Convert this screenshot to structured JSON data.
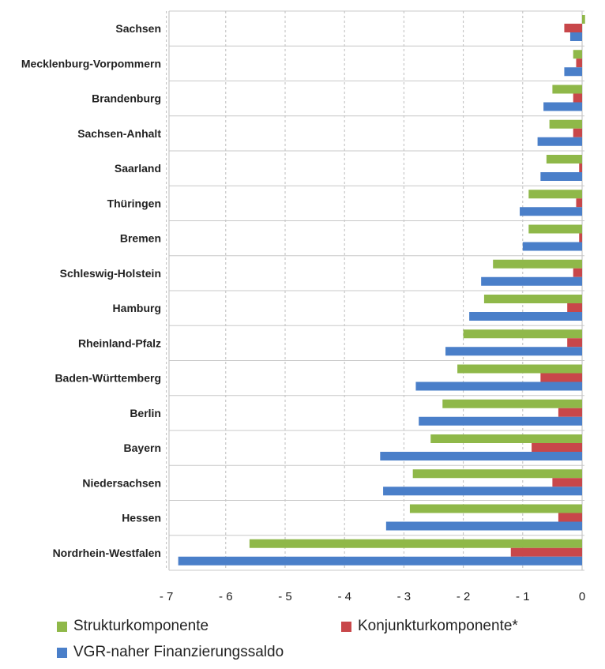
{
  "chart_data": {
    "type": "bar",
    "orientation": "horizontal",
    "categories": [
      "Sachsen",
      "Mecklenburg-Vorpommern",
      "Brandenburg",
      "Sachsen-Anhalt",
      "Saarland",
      "Thüringen",
      "Bremen",
      "Schleswig-Holstein",
      "Hamburg",
      "Rheinland-Pfalz",
      "Baden-Württemberg",
      "Berlin",
      "Bayern",
      "Niedersachsen",
      "Hessen",
      "Nordrhein-Westfalen"
    ],
    "series": [
      {
        "name": "Strukturkomponente",
        "color": "#8fb849",
        "values": [
          0.05,
          -0.15,
          -0.5,
          -0.55,
          -0.6,
          -0.9,
          -0.9,
          -1.5,
          -1.65,
          -2.0,
          -2.1,
          -2.35,
          -2.55,
          -2.85,
          -2.9,
          -5.6
        ]
      },
      {
        "name": "Konjunkturkomponente*",
        "color": "#c8474a",
        "values": [
          -0.3,
          -0.1,
          -0.15,
          -0.15,
          -0.05,
          -0.1,
          -0.05,
          -0.15,
          -0.25,
          -0.25,
          -0.7,
          -0.4,
          -0.85,
          -0.5,
          -0.4,
          -1.2
        ]
      },
      {
        "name": "VGR-naher Finanzierungssaldo",
        "color": "#4a7fc9",
        "values": [
          -0.2,
          -0.3,
          -0.65,
          -0.75,
          -0.7,
          -1.05,
          -1.0,
          -1.7,
          -1.9,
          -2.3,
          -2.8,
          -2.75,
          -3.4,
          -3.35,
          -3.3,
          -6.8
        ]
      }
    ],
    "xlim": [
      -7,
      0
    ],
    "xticks": [
      "- 7",
      "- 6",
      "- 5",
      "- 4",
      "- 3",
      "- 2",
      "- 1",
      "0"
    ],
    "grid": "vertical",
    "legend_position": "bottom"
  }
}
